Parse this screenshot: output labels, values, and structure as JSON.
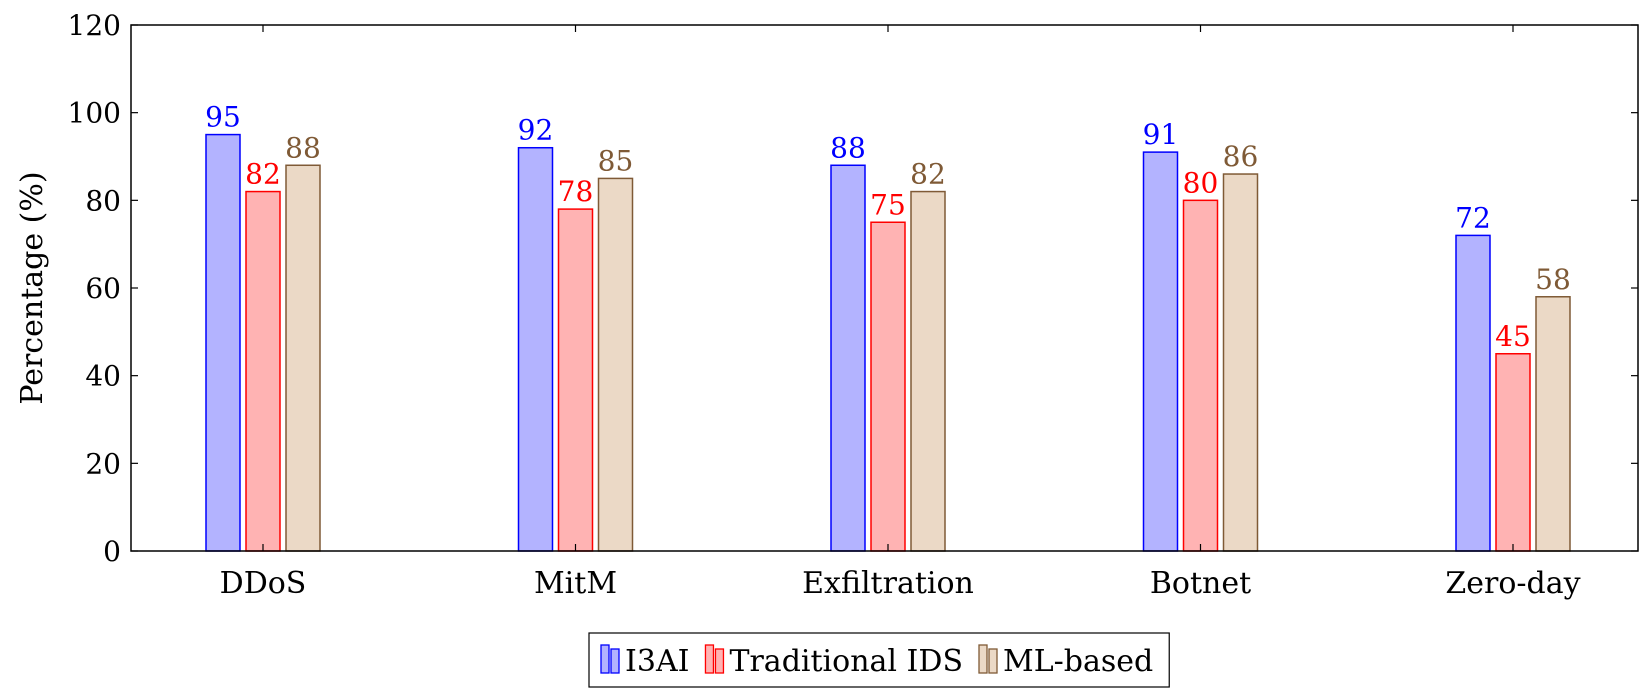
{
  "chart_data": {
    "type": "bar",
    "title": "",
    "xlabel": "",
    "ylabel": "Percentage (%)",
    "ylim": [
      0,
      120
    ],
    "yticks": [
      0,
      20,
      40,
      60,
      80,
      100,
      120
    ],
    "categories": [
      "DDoS",
      "MitM",
      "Exfiltration",
      "Botnet",
      "Zero-day"
    ],
    "series": [
      {
        "name": "I3AI",
        "values": [
          95,
          92,
          88,
          91,
          72
        ],
        "fill": "#b3b3ff",
        "stroke": "#0000ff",
        "label_color": "#0000ff"
      },
      {
        "name": "Traditional IDS",
        "values": [
          82,
          78,
          75,
          80,
          45
        ],
        "fill": "#ffb3b3",
        "stroke": "#ff0000",
        "label_color": "#ff0000"
      },
      {
        "name": "ML-based",
        "values": [
          88,
          85,
          82,
          86,
          58
        ],
        "fill": "#ebd9c6",
        "stroke": "#7f5a36",
        "label_color": "#7f5a36"
      }
    ],
    "legend_position": "bottom-center",
    "grid": false,
    "data_labels": true
  }
}
